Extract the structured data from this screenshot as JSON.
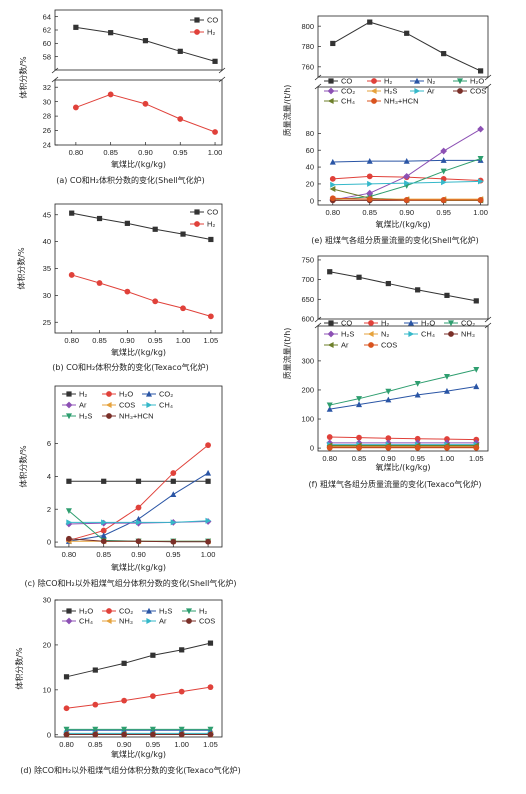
{
  "chart_data": [
    {
      "id": "a",
      "type": "line",
      "caption": "(a) CO和H₂体积分数的变化(Shell气化炉)",
      "xlabel": "氧煤比/(kg/kg)",
      "ylabel": "体积分数/%",
      "x": [
        0.8,
        0.85,
        0.9,
        0.95,
        1.0
      ],
      "xticks": [
        "0.80",
        "0.85",
        "0.90",
        "0.95",
        "1.00"
      ],
      "xlim": [
        0.77,
        1.01
      ],
      "broken_y": true,
      "upper": {
        "ylim": [
          56,
          65
        ],
        "ticks": [
          58,
          60,
          62,
          64
        ]
      },
      "lower": {
        "ylim": [
          24,
          33
        ],
        "ticks": [
          24,
          26,
          28,
          30,
          32
        ]
      },
      "legend_position": "top-right",
      "series": [
        {
          "name": "CO",
          "color": "#333333",
          "marker": "square",
          "values": [
            62.4,
            61.6,
            60.4,
            58.8,
            57.3
          ]
        },
        {
          "name": "H₂",
          "color": "#e0413a",
          "marker": "circle",
          "values": [
            29.2,
            31.0,
            29.7,
            27.6,
            25.8
          ]
        }
      ]
    },
    {
      "id": "b",
      "type": "line",
      "caption": "(b) CO和H₂体积分数的变化(Texaco气化炉)",
      "xlabel": "氧煤比/(kg/kg)",
      "ylabel": "体积分数/%",
      "x": [
        0.8,
        0.85,
        0.9,
        0.95,
        1.0,
        1.05
      ],
      "xticks": [
        "0.80",
        "0.85",
        "0.90",
        "0.95",
        "1.00",
        "1.05"
      ],
      "xlim": [
        0.77,
        1.07
      ],
      "ylim": [
        23,
        47
      ],
      "yticks": [
        25,
        30,
        35,
        40,
        45
      ],
      "legend_position": "top-right",
      "series": [
        {
          "name": "CO",
          "color": "#333333",
          "marker": "square",
          "values": [
            45.3,
            44.3,
            43.4,
            42.3,
            41.4,
            40.4
          ]
        },
        {
          "name": "H₂",
          "color": "#e0413a",
          "marker": "circle",
          "values": [
            33.8,
            32.3,
            30.7,
            28.9,
            27.6,
            26.1
          ]
        }
      ]
    },
    {
      "id": "c",
      "type": "line",
      "caption": "(c) 除CO和H₂以外粗煤气组分体积分数的变化(Shell气化炉)",
      "xlabel": "氧煤比/(kg/kg)",
      "ylabel": "体积分数/%",
      "x": [
        0.8,
        0.85,
        0.9,
        0.95,
        1.0
      ],
      "xticks": [
        "0.80",
        "0.85",
        "0.90",
        "0.95",
        "1.00"
      ],
      "xlim": [
        0.78,
        1.02
      ],
      "ylim": [
        -0.3,
        9.5
      ],
      "yticks": [
        0,
        2,
        4,
        6
      ],
      "legend_position": "top-left",
      "series": [
        {
          "name": "H₂",
          "color": "#333333",
          "marker": "square",
          "values": [
            3.7,
            3.7,
            3.7,
            3.7,
            3.7
          ]
        },
        {
          "name": "H₂O",
          "color": "#e0413a",
          "marker": "circle",
          "values": [
            0.1,
            0.7,
            2.1,
            4.2,
            5.9
          ]
        },
        {
          "name": "CO₂",
          "color": "#2a55a5",
          "marker": "triangle",
          "values": [
            0.05,
            0.4,
            1.4,
            2.9,
            4.2
          ]
        },
        {
          "name": "Ar",
          "color": "#8c50b4",
          "marker": "diamond",
          "values": [
            1.1,
            1.15,
            1.15,
            1.2,
            1.25
          ]
        },
        {
          "name": "COS",
          "color": "#e6a23c",
          "marker": "tri-left",
          "values": [
            0.05,
            0.05,
            0.05,
            0.05,
            0.05
          ]
        },
        {
          "name": "CH₄",
          "color": "#35b8c9",
          "marker": "tri-right",
          "values": [
            1.2,
            1.2,
            1.2,
            1.2,
            1.3
          ]
        },
        {
          "name": "H₂S",
          "color": "#2e9e6f",
          "marker": "tri-down",
          "values": [
            1.9,
            0.1,
            0.05,
            0.05,
            0.05
          ]
        },
        {
          "name": "NH₃+HCN",
          "color": "#7a2f28",
          "marker": "circle",
          "values": [
            0.2,
            0.05,
            0.05,
            0.02,
            0.02
          ]
        }
      ]
    },
    {
      "id": "d",
      "type": "line",
      "caption": "(d) 除CO和H₂以外粗煤气组分体积分数的变化(Texaco气化炉)",
      "xlabel": "氧煤比/(kg/kg)",
      "ylabel": "体积分数/%",
      "x": [
        0.8,
        0.85,
        0.9,
        0.95,
        1.0,
        1.05
      ],
      "xticks": [
        "0.80",
        "0.85",
        "0.90",
        "0.95",
        "1.00",
        "1.05"
      ],
      "xlim": [
        0.78,
        1.07
      ],
      "ylim": [
        -0.5,
        30
      ],
      "yticks": [
        0,
        10,
        20,
        30
      ],
      "legend_position": "top-left",
      "series": [
        {
          "name": "H₂O",
          "color": "#333333",
          "marker": "square",
          "values": [
            12.9,
            14.4,
            15.9,
            17.7,
            18.9,
            20.4
          ]
        },
        {
          "name": "CO₂",
          "color": "#e0413a",
          "marker": "circle",
          "values": [
            5.9,
            6.7,
            7.6,
            8.6,
            9.6,
            10.6
          ]
        },
        {
          "name": "H₂S",
          "color": "#2a55a5",
          "marker": "triangle",
          "values": [
            1.0,
            1.0,
            1.0,
            1.0,
            1.0,
            1.0
          ]
        },
        {
          "name": "H₂",
          "color": "#2e9e6f",
          "marker": "tri-down",
          "values": [
            1.2,
            1.2,
            1.2,
            1.2,
            1.2,
            1.2
          ]
        },
        {
          "name": "CH₄",
          "color": "#8c50b4",
          "marker": "diamond",
          "values": [
            0.1,
            0.1,
            0.1,
            0.1,
            0.1,
            0.1
          ]
        },
        {
          "name": "NH₃",
          "color": "#e6a23c",
          "marker": "tri-left",
          "values": [
            0.1,
            0.1,
            0.1,
            0.1,
            0.1,
            0.1
          ]
        },
        {
          "name": "Ar",
          "color": "#35b8c9",
          "marker": "tri-right",
          "values": [
            0.3,
            0.3,
            0.3,
            0.3,
            0.3,
            0.3
          ]
        },
        {
          "name": "COS",
          "color": "#7a2f28",
          "marker": "circle",
          "values": [
            0.05,
            0.05,
            0.05,
            0.05,
            0.05,
            0.05
          ]
        }
      ]
    },
    {
      "id": "e",
      "type": "line",
      "caption": "(e) 粗煤气各组分质量流量的变化(Shell气化炉)",
      "xlabel": "氧煤比/(kg/kg)",
      "ylabel": "质量流量/(t/h)",
      "x": [
        0.8,
        0.85,
        0.9,
        0.95,
        1.0
      ],
      "xticks": [
        "0.80",
        "0.85",
        "0.90",
        "0.95",
        "1.00"
      ],
      "xlim": [
        0.78,
        1.01
      ],
      "broken_y": true,
      "upper": {
        "ylim": [
          750,
          810
        ],
        "ticks": [
          760,
          780,
          800
        ]
      },
      "lower": {
        "ylim": [
          -5,
          135
        ],
        "ticks": [
          0,
          20,
          40,
          60,
          80
        ]
      },
      "legend_position": "top",
      "series": [
        {
          "name": "CO",
          "color": "#333333",
          "marker": "square",
          "values": [
            783,
            804,
            793,
            773,
            756
          ]
        },
        {
          "name": "H₂",
          "color": "#e0413a",
          "marker": "circle",
          "values": [
            26,
            29,
            28,
            26,
            24
          ]
        },
        {
          "name": "N₂",
          "color": "#2a55a5",
          "marker": "triangle",
          "values": [
            46,
            47,
            47,
            48,
            48
          ]
        },
        {
          "name": "H₂O",
          "color": "#2e9e6f",
          "marker": "tri-down",
          "values": [
            1,
            5,
            18,
            35,
            50
          ]
        },
        {
          "name": "CO₂",
          "color": "#8c50b4",
          "marker": "diamond",
          "values": [
            1,
            9,
            29,
            59,
            85
          ]
        },
        {
          "name": "H₂S",
          "color": "#e6a23c",
          "marker": "tri-left",
          "values": [
            2,
            2,
            2,
            2,
            2
          ]
        },
        {
          "name": "Ar",
          "color": "#35b8c9",
          "marker": "tri-right",
          "values": [
            19,
            20,
            21,
            22,
            23
          ]
        },
        {
          "name": "COS",
          "color": "#7a2f28",
          "marker": "circle",
          "values": [
            0.5,
            0.5,
            0.5,
            0.5,
            0.5
          ]
        },
        {
          "name": "CH₄",
          "color": "#6d7f2a",
          "marker": "tri-left",
          "values": [
            14,
            3,
            1,
            0.5,
            0.5
          ]
        },
        {
          "name": "NH₃+HCN",
          "color": "#d9531e",
          "marker": "circle",
          "values": [
            3,
            2,
            1,
            1,
            1
          ]
        }
      ]
    },
    {
      "id": "f",
      "type": "line",
      "caption": "(f) 粗煤气各组分质量流量的变化(Texaco气化炉)",
      "xlabel": "氧煤比/(kg/kg)",
      "ylabel": "质量流量/(t/h)",
      "x": [
        0.8,
        0.85,
        0.9,
        0.95,
        1.0,
        1.05
      ],
      "xticks": [
        "0.80",
        "0.85",
        "0.90",
        "0.95",
        "1.00",
        "1.05"
      ],
      "xlim": [
        0.78,
        1.07
      ],
      "broken_y": true,
      "upper": {
        "ylim": [
          600,
          760
        ],
        "ticks": [
          600,
          650,
          700,
          750
        ]
      },
      "lower": {
        "ylim": [
          -10,
          420
        ],
        "ticks": [
          0,
          100,
          200,
          300
        ]
      },
      "legend_position": "top",
      "series": [
        {
          "name": "CO",
          "color": "#333333",
          "marker": "square",
          "values": [
            720,
            706,
            690,
            674,
            660,
            646
          ]
        },
        {
          "name": "H₂",
          "color": "#e0413a",
          "marker": "circle",
          "values": [
            38,
            36,
            34,
            32,
            31,
            29
          ]
        },
        {
          "name": "H₂O",
          "color": "#2a55a5",
          "marker": "triangle",
          "values": [
            134,
            150,
            166,
            183,
            196,
            212
          ]
        },
        {
          "name": "CO₂",
          "color": "#2e9e6f",
          "marker": "tri-down",
          "values": [
            148,
            170,
            195,
            222,
            246,
            270
          ]
        },
        {
          "name": "H₂S",
          "color": "#8c50b4",
          "marker": "diamond",
          "values": [
            18,
            18,
            18,
            18,
            18,
            18
          ]
        },
        {
          "name": "N₂",
          "color": "#e6a23c",
          "marker": "tri-left",
          "values": [
            6,
            6,
            6,
            6,
            6,
            6
          ]
        },
        {
          "name": "CH₄",
          "color": "#35b8c9",
          "marker": "tri-right",
          "values": [
            12,
            12,
            12,
            12,
            12,
            12
          ]
        },
        {
          "name": "NH₃",
          "color": "#7a2f28",
          "marker": "circle",
          "values": [
            3,
            3,
            3,
            3,
            3,
            3
          ]
        },
        {
          "name": "Ar",
          "color": "#6d7f2a",
          "marker": "tri-left",
          "values": [
            9,
            9,
            9,
            9,
            9,
            9
          ]
        },
        {
          "name": "COS",
          "color": "#d9531e",
          "marker": "circle",
          "values": [
            1,
            1,
            1,
            1,
            1,
            1
          ]
        }
      ]
    }
  ]
}
